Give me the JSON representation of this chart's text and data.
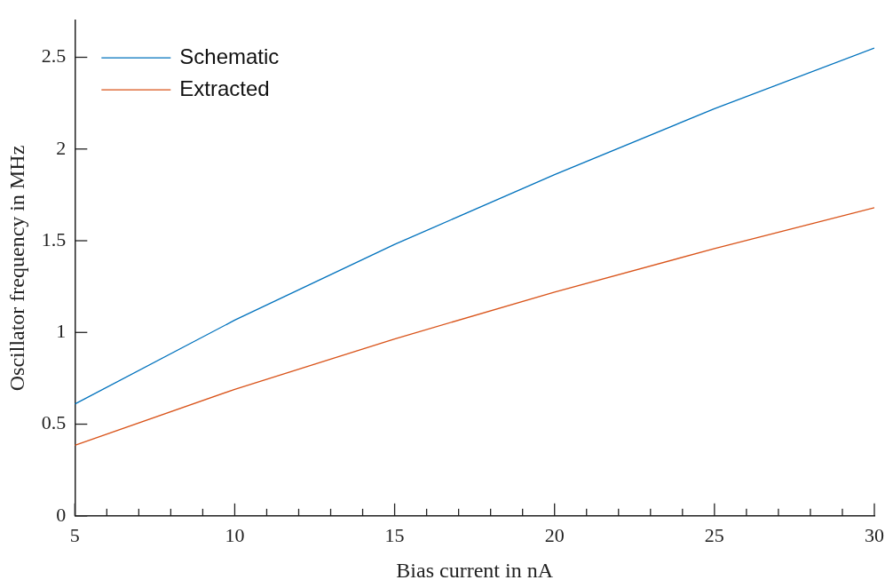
{
  "chart_data": {
    "type": "line",
    "xlabel": "Bias current in nA",
    "ylabel": "Oscillator frequency in MHz",
    "x": [
      5,
      10,
      15,
      20,
      25,
      30
    ],
    "series": [
      {
        "name": "Schematic",
        "color": "#0072bd",
        "values": [
          0.61,
          1.067,
          1.48,
          1.86,
          2.22,
          2.55
        ]
      },
      {
        "name": "Extracted",
        "color": "#d95319",
        "values": [
          0.385,
          0.69,
          0.965,
          1.22,
          1.457,
          1.68
        ]
      }
    ],
    "xlim": [
      5,
      30
    ],
    "ylim": [
      0,
      2.7
    ],
    "xticks": [
      5,
      {
        "value": 6,
        "label": null
      },
      {
        "value": 7,
        "label": null
      },
      {
        "value": 8,
        "label": null
      },
      {
        "value": 9,
        "label": null
      },
      10,
      {
        "value": 11,
        "label": null
      },
      {
        "value": 12,
        "label": null
      },
      {
        "value": 13,
        "label": null
      },
      {
        "value": 14,
        "label": null
      },
      15,
      {
        "value": 16,
        "label": null
      },
      {
        "value": 17,
        "label": null
      },
      {
        "value": 18,
        "label": null
      },
      {
        "value": 19,
        "label": null
      },
      20,
      {
        "value": 21,
        "label": null
      },
      {
        "value": 22,
        "label": null
      },
      {
        "value": 23,
        "label": null
      },
      {
        "value": 24,
        "label": null
      },
      25,
      {
        "value": 26,
        "label": null
      },
      {
        "value": 27,
        "label": null
      },
      {
        "value": 28,
        "label": null
      },
      {
        "value": 29,
        "label": null
      },
      30
    ],
    "yticks": [
      0,
      0.5,
      1,
      1.5,
      2,
      2.5
    ],
    "grid": false,
    "legend": "top left",
    "marker": "none",
    "line_style": "solid"
  }
}
